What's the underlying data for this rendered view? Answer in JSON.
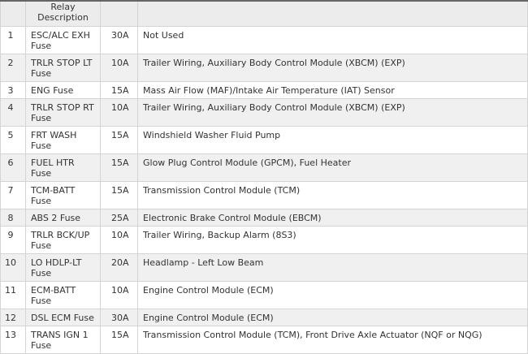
{
  "header": {
    "col1": "",
    "col2": "Relay Description",
    "col3": "",
    "col4": ""
  },
  "rows": [
    {
      "no": "1",
      "name": "ESC/ALC EXH Fuse",
      "amp": "30A",
      "desc": "Not Used"
    },
    {
      "no": "2",
      "name": "TRLR STOP LT Fuse",
      "amp": "10A",
      "desc": "Trailer Wiring, Auxiliary Body Control Module (XBCM) (EXP)"
    },
    {
      "no": "3",
      "name": "ENG Fuse",
      "amp": "15A",
      "desc": "Mass Air Flow (MAF)/Intake Air Temperature (IAT) Sensor"
    },
    {
      "no": "4",
      "name": "TRLR STOP RT Fuse",
      "amp": "10A",
      "desc": "Trailer Wiring, Auxiliary Body Control Module (XBCM) (EXP)"
    },
    {
      "no": "5",
      "name": "FRT WASH Fuse",
      "amp": "15A",
      "desc": "Windshield Washer Fluid Pump"
    },
    {
      "no": "6",
      "name": "FUEL HTR Fuse",
      "amp": "15A",
      "desc": "Glow Plug Control Module (GPCM), Fuel Heater"
    },
    {
      "no": "7",
      "name": "TCM-BATT Fuse",
      "amp": "15A",
      "desc": "Transmission Control Module (TCM)"
    },
    {
      "no": "8",
      "name": "ABS 2 Fuse",
      "amp": "25A",
      "desc": "Electronic Brake Control Module (EBCM)"
    },
    {
      "no": "9",
      "name": "TRLR BCK/UP Fuse",
      "amp": "10A",
      "desc": "Trailer Wiring, Backup Alarm (8S3)"
    },
    {
      "no": "10",
      "name": "LO HDLP-LT Fuse",
      "amp": "20A",
      "desc": "Headlamp - Left Low Beam"
    },
    {
      "no": "11",
      "name": "ECM-BATT Fuse",
      "amp": "10A",
      "desc": "Engine Control Module (ECM)"
    },
    {
      "no": "12",
      "name": "DSL ECM Fuse",
      "amp": "30A",
      "desc": "Engine Control Module (ECM)"
    },
    {
      "no": "13",
      "name": "TRANS IGN 1 Fuse",
      "amp": "15A",
      "desc": "Transmission Control Module (TCM), Front Drive Axle Actuator (NQF or NQG)"
    }
  ]
}
